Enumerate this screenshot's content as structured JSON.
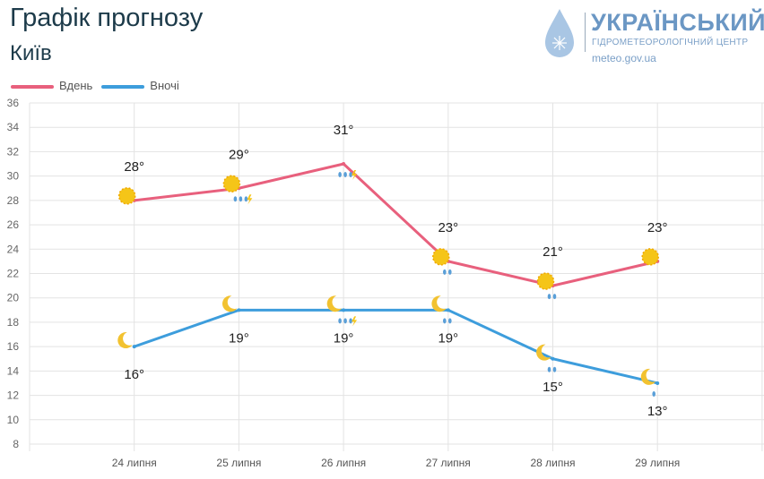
{
  "header": {
    "title": "Графік прогнозу",
    "city": "Київ"
  },
  "logo": {
    "name": "УКРАЇНСЬКИЙ",
    "subtitle": "ГІДРОМЕТЕОРОЛОГІЧНИЙ ЦЕНТР",
    "url": "meteo.gov.ua"
  },
  "chart_data": {
    "type": "line",
    "categories": [
      "24 липня",
      "25 липня",
      "26 липня",
      "27 липня",
      "28 липня",
      "29 липня"
    ],
    "series": [
      {
        "name": "Вдень",
        "color": "#e8607d",
        "values": [
          28,
          29,
          31,
          23,
          21,
          23
        ],
        "labels": [
          "28°",
          "29°",
          "31°",
          "23°",
          "21°",
          "23°"
        ],
        "icons": [
          "sun-cloud",
          "sun-storm-rain",
          "storm-rain",
          "sun-rain",
          "sun-rain",
          "sun-cloud"
        ]
      },
      {
        "name": "Вночі",
        "color": "#3d9ddc",
        "values": [
          16,
          19,
          19,
          19,
          15,
          13
        ],
        "labels": [
          "16°",
          "19°",
          "19°",
          "19°",
          "15°",
          "13°"
        ],
        "icons": [
          "moon-cloud",
          "moon-cloud",
          "moon-storm-rain",
          "moon-rain",
          "moon-rain",
          "moon-drizzle"
        ]
      }
    ],
    "ylim": [
      8,
      36
    ],
    "yticks": [
      "8",
      "10",
      "12",
      "14",
      "16",
      "18",
      "20",
      "22",
      "24",
      "26",
      "28",
      "30",
      "32",
      "34",
      "36"
    ],
    "grid": true,
    "legend": "top-left"
  }
}
